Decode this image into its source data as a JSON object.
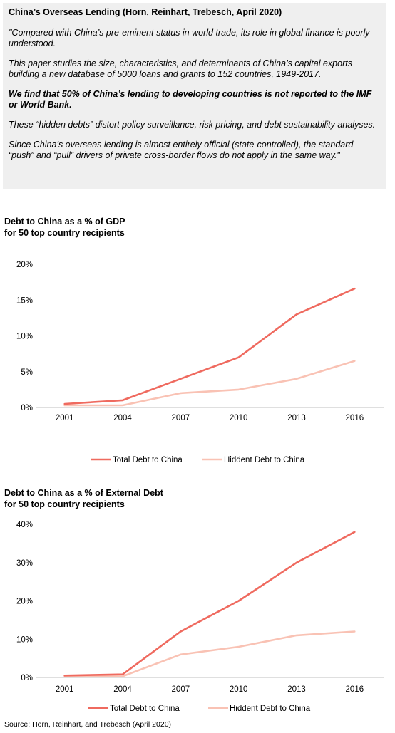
{
  "quote": {
    "title": "China’s Overseas Lending (Horn, Reinhart, Trebesch, April 2020)",
    "paragraphs": [
      "\"Compared with China’s pre-eminent status in world trade, its role in global finance is poorly understood.",
      "This paper studies the size, characteristics, and determinants of China’s capital exports building a new database of 5000 loans and grants to 152 countries, 1949-2017.",
      "We find that 50% of China’s lending to developing countries is not reported to the IMF or World Bank.",
      "These “hidden debts” distort policy surveillance, risk pricing, and debt sustainability analyses.",
      "Since China’s overseas lending is almost entirely official (state-controlled), the standard “push” and “pull” drivers of private cross-border flows do not apply in the same way.\""
    ]
  },
  "chart_data": [
    {
      "type": "line",
      "title_line1": "Debt to China as a % of GDP",
      "title_line2": "for 50 top country recipients",
      "categories": [
        "2001",
        "2004",
        "2007",
        "2010",
        "2013",
        "2016"
      ],
      "yticks": [
        "0%",
        "5%",
        "10%",
        "15%",
        "20%"
      ],
      "ylim": [
        0,
        20
      ],
      "series": [
        {
          "name": "Total Debt to China",
          "color": "#ef6a5f",
          "values": [
            0.5,
            1.0,
            4.0,
            7.0,
            13.0,
            16.6
          ]
        },
        {
          "name": "Hiddent Debt to China",
          "color": "#f9c2b4",
          "values": [
            0.3,
            0.3,
            2.0,
            2.5,
            4.0,
            6.5
          ]
        }
      ]
    },
    {
      "type": "line",
      "title_line1": "Debt to China as a % of External Debt",
      "title_line2": "for 50 top country recipients",
      "categories": [
        "2001",
        "2004",
        "2007",
        "2010",
        "2013",
        "2016"
      ],
      "yticks": [
        "0%",
        "10%",
        "20%",
        "30%",
        "40%"
      ],
      "ylim": [
        0,
        40
      ],
      "series": [
        {
          "name": "Total Debt to China",
          "color": "#ef6a5f",
          "values": [
            0.5,
            0.8,
            12.0,
            20.0,
            30.0,
            38.0
          ]
        },
        {
          "name": "Hiddent Debt to China",
          "color": "#f9c2b4",
          "values": [
            0.3,
            0.3,
            6.0,
            8.0,
            11.0,
            12.0
          ]
        }
      ]
    }
  ],
  "source": "Source: Horn, Reinhart, and Trebesch (April 2020)"
}
